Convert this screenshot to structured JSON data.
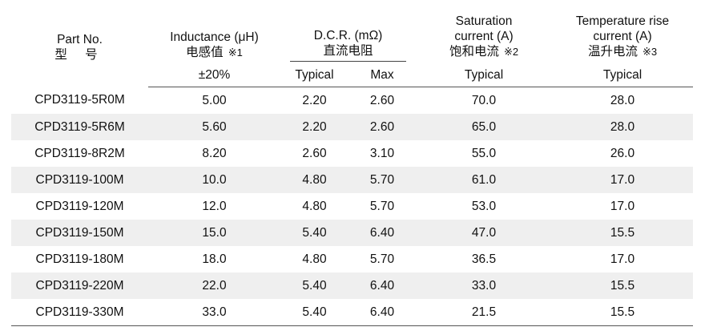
{
  "header": {
    "part": {
      "en": "Part No.",
      "cn": "型 号"
    },
    "inductance": {
      "en": "Inductance (μH)",
      "cn": "电感值",
      "ref": "※1",
      "tolerance": "±20%"
    },
    "dcr": {
      "en": "D.C.R. (mΩ)",
      "cn": "直流电阻",
      "typical": "Typical",
      "max": "Max"
    },
    "saturation": {
      "en1": "Saturation",
      "en2": "current (A)",
      "cn": "饱和电流",
      "ref": "※2",
      "typical": "Typical"
    },
    "temp_rise": {
      "en1": "Temperature rise",
      "en2": "current (A)",
      "cn": "温升电流",
      "ref": "※3",
      "typical": "Typical"
    }
  },
  "rows": [
    {
      "part": "CPD3119-5R0M",
      "inductance": "5.00",
      "dcr_typ": "2.20",
      "dcr_max": "2.60",
      "sat": "70.0",
      "temp": "28.0"
    },
    {
      "part": "CPD3119-5R6M",
      "inductance": "5.60",
      "dcr_typ": "2.20",
      "dcr_max": "2.60",
      "sat": "65.0",
      "temp": "28.0"
    },
    {
      "part": "CPD3119-8R2M",
      "inductance": "8.20",
      "dcr_typ": "2.60",
      "dcr_max": "3.10",
      "sat": "55.0",
      "temp": "26.0"
    },
    {
      "part": "CPD3119-100M",
      "inductance": "10.0",
      "dcr_typ": "4.80",
      "dcr_max": "5.70",
      "sat": "61.0",
      "temp": "17.0"
    },
    {
      "part": "CPD3119-120M",
      "inductance": "12.0",
      "dcr_typ": "4.80",
      "dcr_max": "5.70",
      "sat": "53.0",
      "temp": "17.0"
    },
    {
      "part": "CPD3119-150M",
      "inductance": "15.0",
      "dcr_typ": "5.40",
      "dcr_max": "6.40",
      "sat": "47.0",
      "temp": "15.5"
    },
    {
      "part": "CPD3119-180M",
      "inductance": "18.0",
      "dcr_typ": "4.80",
      "dcr_max": "5.70",
      "sat": "36.5",
      "temp": "17.0"
    },
    {
      "part": "CPD3119-220M",
      "inductance": "22.0",
      "dcr_typ": "5.40",
      "dcr_max": "6.40",
      "sat": "33.0",
      "temp": "15.5"
    },
    {
      "part": "CPD3119-330M",
      "inductance": "33.0",
      "dcr_typ": "5.40",
      "dcr_max": "6.40",
      "sat": "21.5",
      "temp": "15.5"
    }
  ]
}
